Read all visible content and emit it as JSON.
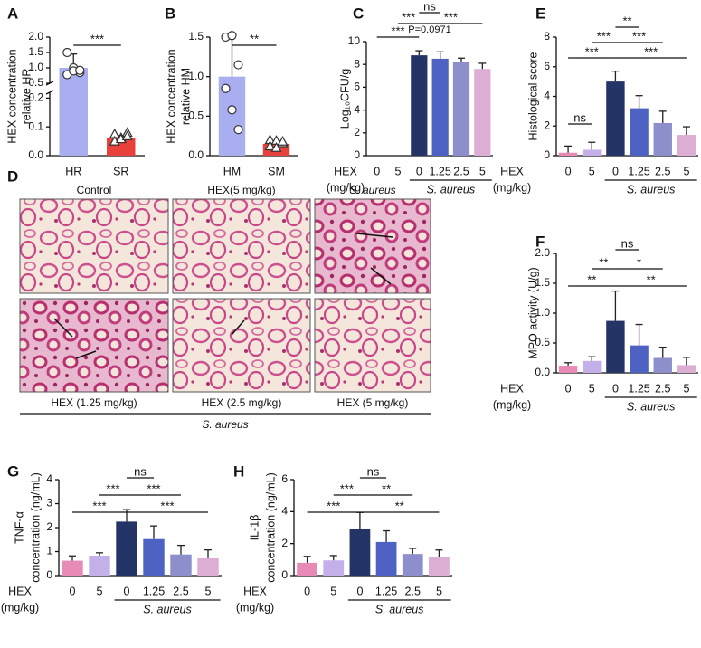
{
  "chart_data": [
    {
      "panel": "A",
      "type": "bar",
      "ylabel": [
        "HEX concentration",
        "relative HR"
      ],
      "categories": [
        "HR",
        "SR"
      ],
      "values": [
        1.0,
        0.06
      ],
      "errors": [
        0.45,
        0.01
      ],
      "colors": [
        "#a9aef0",
        "#e8403a"
      ],
      "points": [
        [
          1.5,
          1.0,
          0.85,
          0.78,
          0.9,
          0.92
        ],
        [
          0.075,
          0.062,
          0.08,
          0.05,
          0.058,
          0.068
        ]
      ],
      "ylim": [
        0,
        2
      ],
      "ybreak": [
        0.22,
        0.5
      ],
      "yticks": [
        {
          "value": 0,
          "label": "0.0"
        },
        0.1,
        0.2,
        0.5,
        {
          "value": 1,
          "label": "1.0"
        },
        1.5,
        {
          "value": 2,
          "label": "2.0"
        }
      ],
      "annotations": [
        "***"
      ]
    },
    {
      "panel": "B",
      "type": "bar",
      "ylabel": [
        "HEX concentration",
        "relative HM"
      ],
      "categories": [
        "HM",
        "SM"
      ],
      "values": [
        1.0,
        0.15
      ],
      "errors": [
        0.52,
        0.04
      ],
      "colors": [
        "#a9aef0",
        "#e8403a"
      ],
      "points": [
        [
          1.5,
          1.52,
          1.15,
          0.85,
          0.58,
          0.33
        ],
        [
          0.2,
          0.19,
          0.16,
          0.12,
          0.1,
          0.18
        ]
      ],
      "ylim": [
        0,
        1.5
      ],
      "yticks": [
        {
          "value": 0,
          "label": "0.0"
        },
        0.5,
        {
          "value": 1,
          "label": "1.0"
        },
        1.5
      ],
      "annotations": [
        "**"
      ]
    },
    {
      "panel": "C",
      "type": "bar",
      "ylabel": [
        "Log₁₀CFU/g"
      ],
      "row_label": [
        "HEX",
        "(mg/kg)"
      ],
      "group_label": "S. aureus",
      "categories": [
        "0",
        "5",
        "0",
        "1.25",
        "2.5",
        "5"
      ],
      "values": [
        0,
        0,
        8.8,
        8.5,
        8.2,
        7.6
      ],
      "errors": [
        null,
        null,
        0.4,
        0.6,
        0.35,
        0.5
      ],
      "colors": [
        "#e78ab6",
        "#c4b0e8",
        "#253466",
        "#4d62c2",
        "#8c8fcb",
        "#dcaed3"
      ],
      "ylim": [
        0,
        10
      ],
      "yticks": [
        0,
        2,
        4,
        6,
        8,
        10
      ],
      "annotations": [
        "ns",
        "***",
        "***",
        "P=0.0971",
        "***"
      ]
    },
    {
      "panel": "E",
      "type": "bar",
      "ylabel": [
        "Histological score"
      ],
      "row_label": [
        "HEX",
        "(mg/kg)"
      ],
      "group_label": "S. aureus",
      "categories": [
        "0",
        "5",
        "0",
        "1.25",
        "2.5",
        "5"
      ],
      "values": [
        0.2,
        0.4,
        5.0,
        3.2,
        2.2,
        1.4
      ],
      "errors": [
        0.45,
        0.5,
        0.7,
        0.85,
        0.8,
        0.55
      ],
      "colors": [
        "#e78ab6",
        "#c4b0e8",
        "#253466",
        "#4d62c2",
        "#8c8fcb",
        "#dcaed3"
      ],
      "ylim": [
        0,
        8
      ],
      "yticks": [
        0,
        2,
        4,
        6,
        8
      ],
      "annotations": [
        "ns",
        "**",
        "***",
        "***",
        "***",
        "***"
      ]
    },
    {
      "panel": "F",
      "type": "bar",
      "ylabel": [
        "MPO activity (U/g)"
      ],
      "row_label": [
        "HEX",
        "(mg/kg)"
      ],
      "group_label": "S. aureus",
      "categories": [
        "0",
        "5",
        "0",
        "1.25",
        "2.5",
        "5"
      ],
      "values": [
        0.12,
        0.2,
        0.87,
        0.46,
        0.25,
        0.13
      ],
      "errors": [
        0.05,
        0.07,
        0.5,
        0.35,
        0.18,
        0.13
      ],
      "colors": [
        "#e78ab6",
        "#c4b0e8",
        "#253466",
        "#4d62c2",
        "#8c8fcb",
        "#dcaed3"
      ],
      "ylim": [
        0,
        2
      ],
      "yticks": [
        {
          "value": 0,
          "label": "0.0"
        },
        0.5,
        {
          "value": 1,
          "label": "1.0"
        },
        1.5,
        {
          "value": 2,
          "label": "2.0"
        }
      ],
      "annotations": [
        "ns",
        "**",
        "*",
        "**",
        "**"
      ]
    },
    {
      "panel": "G",
      "type": "bar",
      "ylabel": [
        "TNF-α",
        "concentration (ng/mL)"
      ],
      "row_label": [
        "HEX",
        "(mg/kg)"
      ],
      "group_label": "S. aureus",
      "categories": [
        "0",
        "5",
        "0",
        "1.25",
        "2.5",
        "5"
      ],
      "values": [
        0.62,
        0.83,
        2.25,
        1.52,
        0.88,
        0.72
      ],
      "errors": [
        0.2,
        0.12,
        0.5,
        0.55,
        0.38,
        0.35
      ],
      "colors": [
        "#e78ab6",
        "#c4b0e8",
        "#253466",
        "#4d62c2",
        "#8c8fcb",
        "#dcaed3"
      ],
      "ylim": [
        0,
        4
      ],
      "yticks": [
        0,
        1,
        2,
        3,
        4
      ],
      "annotations": [
        "ns",
        "***",
        "***",
        "***",
        "***"
      ]
    },
    {
      "panel": "H",
      "type": "bar",
      "ylabel": [
        "IL-1β",
        "concentration (ng/mL)"
      ],
      "row_label": [
        "HEX",
        "(mg/kg)"
      ],
      "group_label": "S. aureus",
      "categories": [
        "0",
        "5",
        "0",
        "1.25",
        "2.5",
        "5"
      ],
      "values": [
        0.8,
        0.95,
        2.9,
        2.1,
        1.35,
        1.15
      ],
      "errors": [
        0.4,
        0.3,
        1.05,
        0.7,
        0.35,
        0.45
      ],
      "colors": [
        "#e78ab6",
        "#c4b0e8",
        "#253466",
        "#4d62c2",
        "#8c8fcb",
        "#dcaed3"
      ],
      "ylim": [
        0,
        6
      ],
      "yticks": [
        0,
        2,
        4,
        6
      ],
      "annotations": [
        "ns",
        "***",
        "**",
        "***",
        "**"
      ]
    }
  ],
  "micrographs": {
    "panel": "D",
    "labels": [
      "Control",
      "HEX(5 mg/kg)",
      "S. aureus",
      "HEX (1.25 mg/kg)",
      "HEX (2.5 mg/kg)",
      "HEX (5 mg/kg)"
    ],
    "group_label": "S. aureus"
  }
}
